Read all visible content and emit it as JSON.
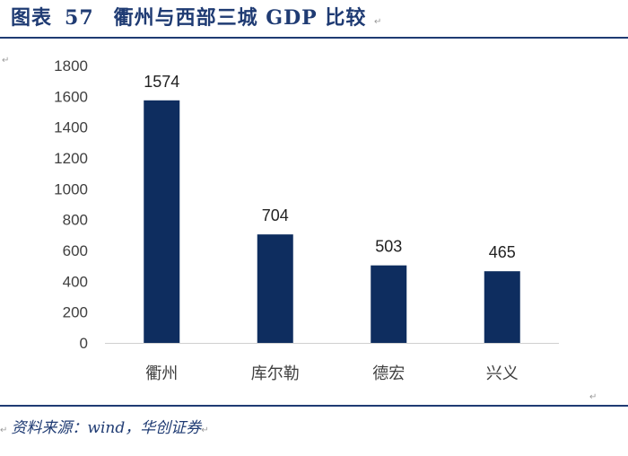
{
  "figure": {
    "label": "图表",
    "number": "57",
    "title": "衢州与西部三城 GDP 比较",
    "paragraph_mark": "↵"
  },
  "chart_data": {
    "type": "bar",
    "title": "衢州与西部三城 GDP 比较",
    "categories": [
      "衢州",
      "库尔勒",
      "德宏",
      "兴义"
    ],
    "values": [
      1574,
      704,
      503,
      465
    ],
    "ylim": [
      0,
      1800
    ],
    "yticks": [
      0,
      200,
      400,
      600,
      800,
      1000,
      1200,
      1400,
      1600,
      1800
    ],
    "xlabel": "",
    "ylabel": "",
    "bar_color": "#0e2d5f",
    "grid": false,
    "legend": "none"
  },
  "source": {
    "text": "资料来源：wind，华创证券"
  },
  "colors": {
    "accent": "#1f3b73",
    "bar": "#0e2d5f",
    "axis_text": "#404040"
  }
}
